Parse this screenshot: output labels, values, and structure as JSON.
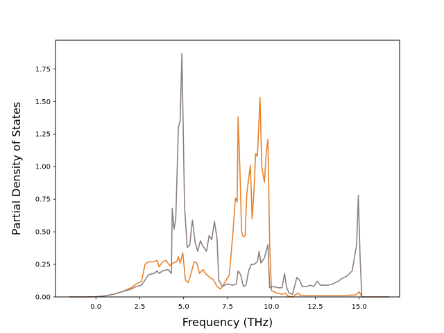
{
  "chart_data": {
    "type": "line",
    "xlabel": "Frequency (THz)",
    "ylabel": "Partial Density of States",
    "xlim": [
      -2.3,
      17.3
    ],
    "ylim": [
      0,
      1.97
    ],
    "x_ticks": [
      0.0,
      2.5,
      5.0,
      7.5,
      10.0,
      12.5,
      15.0
    ],
    "x_tick_labels": [
      "0.0",
      "2.5",
      "5.0",
      "7.5",
      "10.0",
      "12.5",
      "15.0"
    ],
    "y_ticks": [
      0.0,
      0.25,
      0.5,
      0.75,
      1.0,
      1.25,
      1.5,
      1.75
    ],
    "y_tick_labels": [
      "0.00",
      "0.25",
      "0.50",
      "0.75",
      "1.00",
      "1.25",
      "1.50",
      "1.75"
    ],
    "grid": false,
    "series": [
      {
        "color": "#e8822a",
        "points": [
          [
            -1.5,
            0.0
          ],
          [
            -0.5,
            0.0
          ],
          [
            0.0,
            0.002
          ],
          [
            0.5,
            0.008
          ],
          [
            1.0,
            0.02
          ],
          [
            1.5,
            0.04
          ],
          [
            2.0,
            0.07
          ],
          [
            2.3,
            0.1
          ],
          [
            2.6,
            0.12
          ],
          [
            2.8,
            0.25
          ],
          [
            3.0,
            0.27
          ],
          [
            3.3,
            0.27
          ],
          [
            3.5,
            0.28
          ],
          [
            3.6,
            0.23
          ],
          [
            3.8,
            0.27
          ],
          [
            4.0,
            0.28
          ],
          [
            4.2,
            0.24
          ],
          [
            4.4,
            0.26
          ],
          [
            4.6,
            0.27
          ],
          [
            4.7,
            0.31
          ],
          [
            4.8,
            0.26
          ],
          [
            4.95,
            0.34
          ],
          [
            5.1,
            0.13
          ],
          [
            5.25,
            0.11
          ],
          [
            5.4,
            0.17
          ],
          [
            5.6,
            0.27
          ],
          [
            5.75,
            0.26
          ],
          [
            5.9,
            0.18
          ],
          [
            6.1,
            0.21
          ],
          [
            6.3,
            0.17
          ],
          [
            6.5,
            0.15
          ],
          [
            6.7,
            0.13
          ],
          [
            6.9,
            0.08
          ],
          [
            7.1,
            0.06
          ],
          [
            7.3,
            0.1
          ],
          [
            7.6,
            0.17
          ],
          [
            7.8,
            0.48
          ],
          [
            7.95,
            0.76
          ],
          [
            8.05,
            0.73
          ],
          [
            8.1,
            1.38
          ],
          [
            8.2,
            1.0
          ],
          [
            8.3,
            0.5
          ],
          [
            8.4,
            0.46
          ],
          [
            8.5,
            0.47
          ],
          [
            8.6,
            0.8
          ],
          [
            8.8,
            1.01
          ],
          [
            8.9,
            0.6
          ],
          [
            9.0,
            0.8
          ],
          [
            9.1,
            1.1
          ],
          [
            9.2,
            1.08
          ],
          [
            9.35,
            1.53
          ],
          [
            9.45,
            1.0
          ],
          [
            9.6,
            0.88
          ],
          [
            9.7,
            1.1
          ],
          [
            9.8,
            1.21
          ],
          [
            9.9,
            0.4
          ],
          [
            10.0,
            0.05
          ],
          [
            10.3,
            0.03
          ],
          [
            10.6,
            0.02
          ],
          [
            10.8,
            0.03
          ],
          [
            10.95,
            0.005
          ],
          [
            11.2,
            0.0
          ],
          [
            11.5,
            0.03
          ],
          [
            11.7,
            0.01
          ],
          [
            12.0,
            0.01
          ],
          [
            13.0,
            0.01
          ],
          [
            14.0,
            0.01
          ],
          [
            14.8,
            0.015
          ],
          [
            15.0,
            0.04
          ],
          [
            15.15,
            0.0
          ],
          [
            16.7,
            0.0
          ]
        ]
      },
      {
        "color": "#8c7f80",
        "points": [
          [
            -1.5,
            0.0
          ],
          [
            -0.5,
            0.0
          ],
          [
            0.0,
            0.002
          ],
          [
            0.5,
            0.008
          ],
          [
            1.0,
            0.02
          ],
          [
            1.5,
            0.04
          ],
          [
            2.0,
            0.06
          ],
          [
            2.3,
            0.08
          ],
          [
            2.6,
            0.09
          ],
          [
            2.8,
            0.13
          ],
          [
            3.0,
            0.17
          ],
          [
            3.3,
            0.18
          ],
          [
            3.5,
            0.2
          ],
          [
            3.6,
            0.18
          ],
          [
            3.8,
            0.2
          ],
          [
            4.1,
            0.21
          ],
          [
            4.3,
            0.18
          ],
          [
            4.35,
            0.68
          ],
          [
            4.45,
            0.52
          ],
          [
            4.55,
            0.6
          ],
          [
            4.7,
            1.3
          ],
          [
            4.8,
            1.35
          ],
          [
            4.9,
            1.87
          ],
          [
            5.05,
            0.7
          ],
          [
            5.2,
            0.38
          ],
          [
            5.35,
            0.4
          ],
          [
            5.5,
            0.59
          ],
          [
            5.65,
            0.42
          ],
          [
            5.8,
            0.35
          ],
          [
            5.95,
            0.43
          ],
          [
            6.1,
            0.39
          ],
          [
            6.3,
            0.35
          ],
          [
            6.45,
            0.47
          ],
          [
            6.6,
            0.44
          ],
          [
            6.75,
            0.58
          ],
          [
            6.9,
            0.45
          ],
          [
            7.0,
            0.13
          ],
          [
            7.2,
            0.08
          ],
          [
            7.5,
            0.1
          ],
          [
            7.8,
            0.09
          ],
          [
            8.0,
            0.1
          ],
          [
            8.1,
            0.2
          ],
          [
            8.25,
            0.17
          ],
          [
            8.4,
            0.08
          ],
          [
            8.55,
            0.09
          ],
          [
            8.7,
            0.2
          ],
          [
            8.85,
            0.25
          ],
          [
            9.0,
            0.25
          ],
          [
            9.2,
            0.27
          ],
          [
            9.3,
            0.35
          ],
          [
            9.4,
            0.26
          ],
          [
            9.6,
            0.3
          ],
          [
            9.8,
            0.4
          ],
          [
            9.9,
            0.07
          ],
          [
            10.1,
            0.08
          ],
          [
            10.4,
            0.07
          ],
          [
            10.6,
            0.07
          ],
          [
            10.75,
            0.18
          ],
          [
            10.85,
            0.08
          ],
          [
            11.0,
            0.03
          ],
          [
            11.2,
            0.02
          ],
          [
            11.45,
            0.15
          ],
          [
            11.6,
            0.13
          ],
          [
            11.75,
            0.08
          ],
          [
            12.0,
            0.08
          ],
          [
            12.2,
            0.09
          ],
          [
            12.4,
            0.08
          ],
          [
            12.6,
            0.12
          ],
          [
            12.8,
            0.09
          ],
          [
            13.2,
            0.09
          ],
          [
            13.5,
            0.1
          ],
          [
            13.8,
            0.12
          ],
          [
            14.0,
            0.14
          ],
          [
            14.3,
            0.16
          ],
          [
            14.6,
            0.2
          ],
          [
            14.85,
            0.4
          ],
          [
            14.95,
            0.78
          ],
          [
            15.05,
            0.3
          ],
          [
            15.15,
            0.0
          ],
          [
            16.7,
            0.0
          ]
        ]
      }
    ]
  }
}
